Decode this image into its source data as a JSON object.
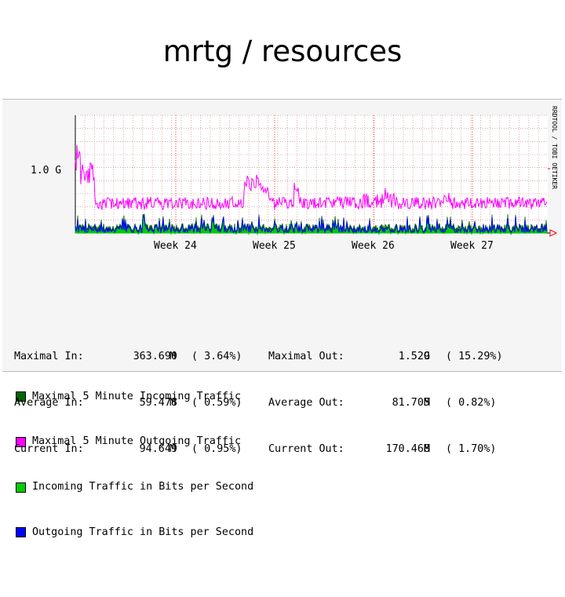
{
  "title": "mrtg / resources",
  "chart_data": {
    "type": "area",
    "side_label": "RRDTOOL / TOBI OETIKER",
    "y_tick_label": "1.0 G",
    "x_tick_labels": [
      "Week 24",
      "Week 25",
      "Week 26",
      "Week 27"
    ],
    "series": [
      {
        "name": "Maximal 5 Minute Incoming Traffic",
        "color": "#006600"
      },
      {
        "name": "Maximal 5 Minute Outgoing Traffic",
        "color": "#ff00ff"
      },
      {
        "name": "Incoming Traffic in Bits per Second",
        "color": "#00cc00"
      },
      {
        "name": "Outgoing Traffic in Bits per Second",
        "color": "#0000ff"
      }
    ],
    "summary": [
      {
        "label_in": "Maximal In:",
        "in_value": "363.690",
        "in_unit": "M",
        "in_pct": "( 3.64%)",
        "label_out": "Maximal Out:",
        "out_value": "1.529",
        "out_unit": "G",
        "out_pct": "( 15.29%)"
      },
      {
        "label_in": "Average In:",
        "in_value": "59.478",
        "in_unit": "M",
        "in_pct": "( 0.59%)",
        "label_out": "Average Out:",
        "out_value": "81.705",
        "out_unit": "M",
        "out_pct": "( 0.82%)"
      },
      {
        "label_in": "Current In:",
        "in_value": "94.649",
        "in_unit": "M",
        "in_pct": "( 0.95%)",
        "label_out": "Current Out:",
        "out_value": "170.468",
        "out_unit": "M",
        "out_pct": "( 1.70%)"
      }
    ]
  }
}
